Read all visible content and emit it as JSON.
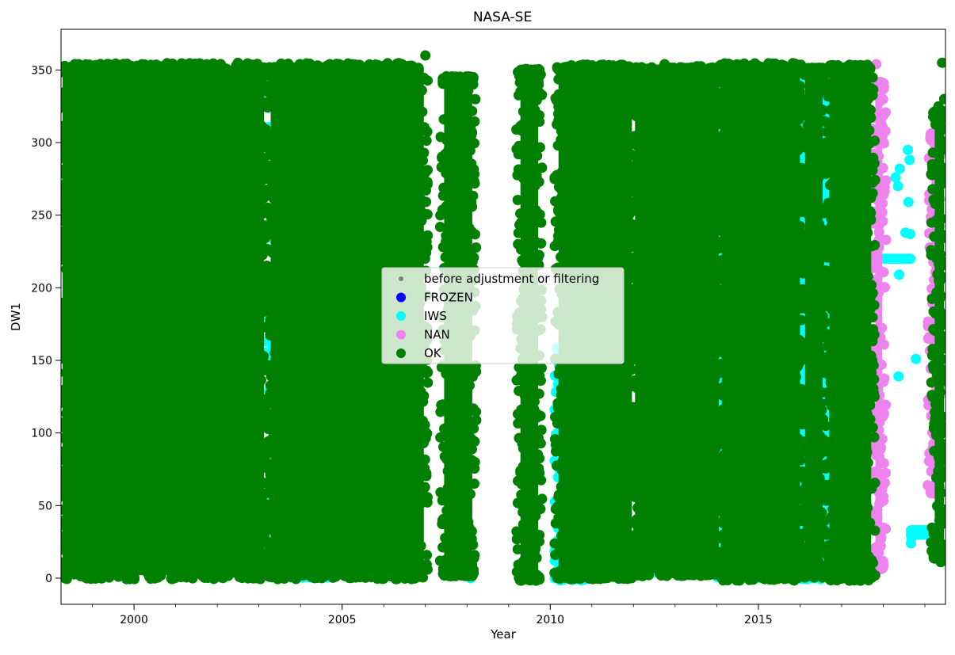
{
  "chart_data": {
    "type": "scatter",
    "title": "NASA-SE",
    "xlabel": "Year",
    "ylabel": "DW1",
    "xlim": [
      "1998-04-01",
      "2019-07-01"
    ],
    "ylim": [
      -18,
      378
    ],
    "x_ticks": [
      {
        "date": "2000-01-01",
        "label": "2000"
      },
      {
        "date": "2005-01-01",
        "label": "2005"
      },
      {
        "date": "2010-01-01",
        "label": "2010"
      },
      {
        "date": "2015-01-01",
        "label": "2015"
      }
    ],
    "y_ticks": [
      0,
      50,
      100,
      150,
      200,
      250,
      300,
      350
    ],
    "legend": {
      "position": "center",
      "entries": [
        {
          "label": "before adjustment or filtering",
          "color": "#808080",
          "marker": "small-dot"
        },
        {
          "label": "FROZEN",
          "color": "#0000ff",
          "marker": "dot"
        },
        {
          "label": "IWS",
          "color": "#00ffff",
          "marker": "dot"
        },
        {
          "label": "NAN",
          "color": "#ee82ee",
          "marker": "dot"
        },
        {
          "label": "OK",
          "color": "#008000",
          "marker": "dot"
        }
      ]
    },
    "series": [
      {
        "name": "IWS",
        "color": "#00ffff",
        "dense_bands": [
          {
            "x": [
              "2003-04-01",
              "2004-09-01"
            ],
            "y": [
              2,
              348
            ]
          },
          {
            "x": [
              "2014-01-01",
              "2017-04-01"
            ],
            "y": [
              1,
              350
            ]
          },
          {
            "x": [
              "2010-03-01",
              "2010-11-01"
            ],
            "y": [
              0,
              160
            ]
          },
          {
            "x": [
              "2012-03-01",
              "2013-08-01"
            ],
            "y": [
              5,
              300
            ]
          }
        ],
        "points": [
          {
            "x": "2018-04-20",
            "y": 276
          },
          {
            "x": "2018-05-10",
            "y": 270
          },
          {
            "x": "2018-05-25",
            "y": 282
          },
          {
            "x": "2018-07-15",
            "y": 238
          },
          {
            "x": "2018-08-05",
            "y": 295
          },
          {
            "x": "2018-08-20",
            "y": 288
          },
          {
            "x": "2018-08-10",
            "y": 259
          },
          {
            "x": "2018-08-25",
            "y": 237
          },
          {
            "x": "2018-05-15",
            "y": 139
          },
          {
            "x": "2018-10-15",
            "y": 151
          },
          {
            "x": "2018-05-20",
            "y": 209
          },
          {
            "x": "2018-09-01",
            "y": 24
          },
          {
            "x": "2018-09-05",
            "y": 28
          },
          {
            "x": "2008-02-01",
            "y": 0
          },
          {
            "x": "2010-02-10",
            "y": 0
          },
          {
            "x": "2016-04-15",
            "y": 0
          },
          {
            "x": "2015-01-20",
            "y": 0
          },
          {
            "x": "2017-01-25",
            "y": 352
          }
        ],
        "segments": [
          {
            "x": [
              "2018-01-10",
              "2018-09-01"
            ],
            "y": 220
          },
          {
            "x": [
              "2018-09-01",
              "2019-05-01"
            ],
            "y": 33
          },
          {
            "x": [
              "2018-09-01",
              "2019-05-01"
            ],
            "y": 30
          }
        ]
      },
      {
        "name": "NAN",
        "color": "#ee82ee",
        "dense_bands": [
          {
            "x": [
              "2017-10-10",
              "2018-01-05"
            ],
            "y": [
              8,
              340
            ]
          },
          {
            "x": [
              "2019-02-15",
              "2019-05-15"
            ],
            "y": [
              60,
              305
            ]
          }
        ],
        "points": [
          {
            "x": "2017-11-01",
            "y": 354
          },
          {
            "x": "2017-12-01",
            "y": 96
          },
          {
            "x": "2019-03-01",
            "y": 302
          }
        ]
      },
      {
        "name": "OK",
        "color": "#008000",
        "dense_bands": [
          {
            "x": [
              "1998-04-01",
              "2003-03-01"
            ],
            "y": [
              1,
              353
            ]
          },
          {
            "x": [
              "2003-04-01",
              "2007-01-01"
            ],
            "y": [
              1,
              353
            ]
          },
          {
            "x": [
              "2007-06-01",
              "2008-03-01"
            ],
            "y": [
              3,
              344
            ]
          },
          {
            "x": [
              "2009-04-01",
              "2009-10-01"
            ],
            "y": [
              0,
              349
            ]
          },
          {
            "x": [
              "2010-03-01",
              "2012-01-01"
            ],
            "y": [
              1,
              352
            ]
          },
          {
            "x": [
              "2012-01-01",
              "2014-02-01"
            ],
            "y": [
              3,
              351
            ]
          },
          {
            "x": [
              "2014-02-01",
              "2016-01-15"
            ],
            "y": [
              0,
              353
            ]
          },
          {
            "x": [
              "2016-02-01",
              "2016-08-01"
            ],
            "y": [
              2,
              350
            ]
          },
          {
            "x": [
              "2016-09-01",
              "2017-10-01"
            ],
            "y": [
              0,
              352
            ]
          },
          {
            "x": [
              "2019-03-15",
              "2019-07-01"
            ],
            "y": [
              15,
              320
            ]
          }
        ],
        "points": [
          {
            "x": "2007-01-01",
            "y": 360
          },
          {
            "x": "2004-09-15",
            "y": 354
          },
          {
            "x": "2002-07-01",
            "y": 355
          },
          {
            "x": "2012-10-01",
            "y": 354
          },
          {
            "x": "2010-03-10",
            "y": 298
          },
          {
            "x": "2010-02-20",
            "y": 92
          },
          {
            "x": "2011-10-01",
            "y": 0
          },
          {
            "x": "2019-06-01",
            "y": 355
          },
          {
            "x": "2019-05-01",
            "y": 325
          },
          {
            "x": "2019-06-20",
            "y": 330
          },
          {
            "x": "2019-05-01",
            "y": 19
          },
          {
            "x": "2019-05-20",
            "y": 11
          },
          {
            "x": "2019-06-25",
            "y": 12
          },
          {
            "x": "2019-05-10",
            "y": 40
          }
        ]
      }
    ]
  }
}
